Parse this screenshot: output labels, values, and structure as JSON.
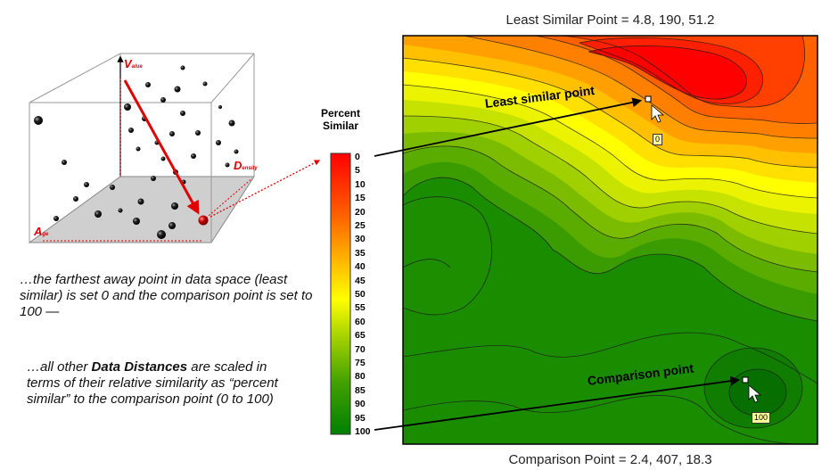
{
  "cube_labels": {
    "value": {
      "main": "V",
      "sub": "alue"
    },
    "density": {
      "main": "D",
      "sub": "ensity"
    },
    "age": {
      "main": "A",
      "sub": "ge"
    }
  },
  "text": {
    "para1": "…the farthest away point in data space (least similar) is set 0 and the comparison point is set to 100 —",
    "para2_pre": "…all other ",
    "para2_bold": "Data Distances",
    "para2_post": " are scaled in terms of their relative similarity as “percent similar” to the comparison point (0 to 100)"
  },
  "legend": {
    "title_line1": "Percent",
    "title_line2": "Similar",
    "ticks": [
      "0",
      "5",
      "10",
      "15",
      "20",
      "25",
      "30",
      "35",
      "40",
      "45",
      "50",
      "55",
      "60",
      "65",
      "70",
      "75",
      "80",
      "85",
      "90",
      "95",
      "100"
    ]
  },
  "map": {
    "top_label": "Least Similar Point = 4.8, 190, 51.2",
    "bottom_label": "Comparison Point = 2.4, 407, 18.3",
    "least_label": "Least similar point",
    "comparison_label": "Comparison point",
    "least_value": "0",
    "comparison_value": "100"
  },
  "colors": {
    "arrow_red": "#e00000",
    "ramp": [
      "#ff0000",
      "#ff2000",
      "#ff4000",
      "#ff6000",
      "#ff8000",
      "#ffa000",
      "#ffc000",
      "#ffe000",
      "#ffff00",
      "#e0f000",
      "#c0e000",
      "#a0d000",
      "#80c000",
      "#60b000",
      "#40a000",
      "#209000",
      "#008000"
    ]
  }
}
